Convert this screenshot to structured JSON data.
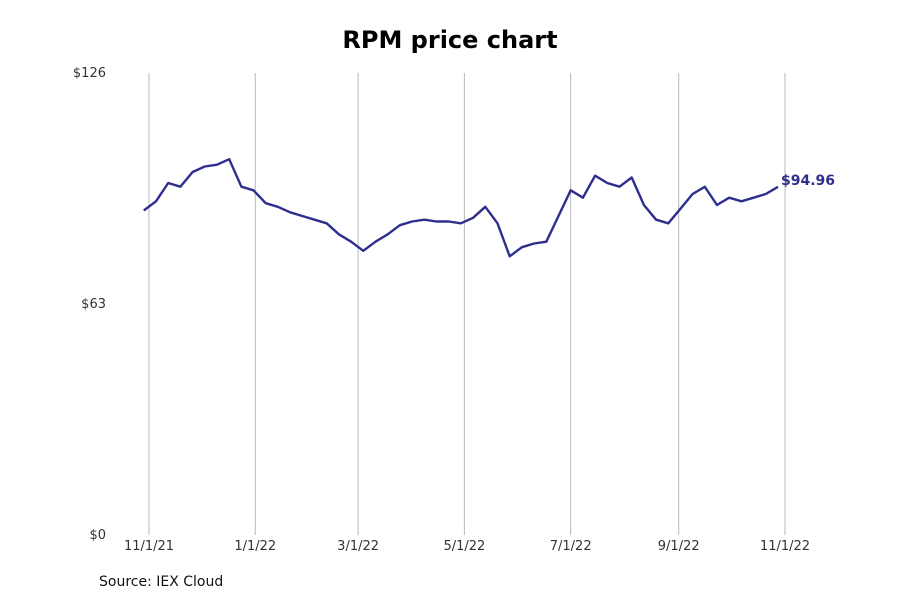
{
  "chart_data": {
    "type": "line",
    "title": "RPM price chart",
    "source": "Source: IEX Cloud",
    "xlabel": "",
    "ylabel": "",
    "x_ticks": [
      "11/1/21",
      "1/1/22",
      "3/1/22",
      "5/1/22",
      "7/1/22",
      "9/1/22",
      "11/1/22"
    ],
    "y_ticks": [
      "$0",
      "$63",
      "$126"
    ],
    "ylim": [
      0,
      126
    ],
    "xlim": [
      "2021-10-29",
      "2022-11-01"
    ],
    "grid": "vertical",
    "line_color": "#2e2e8e",
    "last_value_label": "$94.96",
    "series": [
      {
        "x": [
          "2021-10-29",
          "2021-11-05",
          "2021-11-12",
          "2021-11-19",
          "2021-11-26",
          "2021-12-03",
          "2021-12-10",
          "2021-12-17",
          "2021-12-24",
          "2021-12-31",
          "2022-01-07",
          "2022-01-14",
          "2022-01-21",
          "2022-01-28",
          "2022-02-04",
          "2022-02-11",
          "2022-02-18",
          "2022-02-25",
          "2022-03-04",
          "2022-03-11",
          "2022-03-18",
          "2022-03-25",
          "2022-04-01",
          "2022-04-08",
          "2022-04-15",
          "2022-04-22",
          "2022-04-29",
          "2022-05-06",
          "2022-05-13",
          "2022-05-20",
          "2022-05-27",
          "2022-06-03",
          "2022-06-10",
          "2022-06-17",
          "2022-06-24",
          "2022-07-01",
          "2022-07-08",
          "2022-07-15",
          "2022-07-22",
          "2022-07-29",
          "2022-08-05",
          "2022-08-12",
          "2022-08-19",
          "2022-08-26",
          "2022-09-02",
          "2022-09-09",
          "2022-09-16",
          "2022-09-23",
          "2022-09-30",
          "2022-10-07",
          "2022-10-14",
          "2022-10-21",
          "2022-10-28"
        ],
        "y": [
          88.5,
          91,
          96,
          95,
          99,
          100.5,
          101,
          102.5,
          95,
          94,
          90.5,
          89.5,
          88,
          87,
          86,
          85,
          82,
          80,
          77.5,
          80,
          82,
          84.5,
          85.5,
          86,
          85.5,
          85.5,
          85,
          86.5,
          89.5,
          85,
          76,
          78.5,
          79.5,
          80,
          87,
          94,
          92,
          98,
          96,
          95,
          97.5,
          90,
          86,
          85,
          89,
          93,
          94.96,
          90,
          92,
          91,
          92,
          93,
          94.96
        ]
      }
    ]
  }
}
